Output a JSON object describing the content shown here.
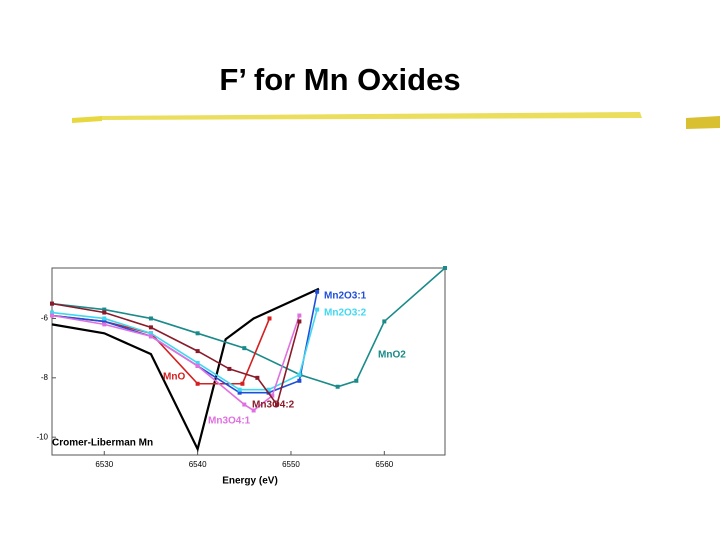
{
  "chart_data": {
    "type": "line",
    "title": "F’ for Mn Oxides",
    "xlabel": "Energy (eV)",
    "xlim": [
      6524.4,
      6566.5
    ],
    "xticks": [
      6530,
      6540,
      6550,
      6560
    ],
    "ylim": [
      -10.6,
      -4.3
    ],
    "yticks": [
      -6,
      -8,
      -10
    ],
    "series": [
      {
        "name": "Cromer-Liberman Mn",
        "color": "#000000",
        "x": [
          6524.4,
          6530,
          6535,
          6540,
          6543,
          6546,
          6553
        ],
        "values": [
          -6.2,
          -6.5,
          -7.2,
          -10.4,
          -6.7,
          -6.0,
          -5.0
        ]
      },
      {
        "name": "MnO2",
        "color": "#1a8a8a",
        "x": [
          6524.4,
          6530,
          6535,
          6540,
          6545,
          6551,
          6555,
          6557,
          6560,
          6566.5
        ],
        "values": [
          -5.5,
          -5.7,
          -6.0,
          -6.5,
          -7.0,
          -7.9,
          -8.3,
          -8.1,
          -6.1,
          -4.3
        ]
      },
      {
        "name": "MnO",
        "color": "#d42020",
        "x": [
          6524.4,
          6530,
          6535,
          6540,
          6544.8,
          6547.7
        ],
        "values": [
          -5.9,
          -6.1,
          -6.5,
          -8.2,
          -8.2,
          -6.0
        ]
      },
      {
        "name": "Mn2O3:1",
        "color": "#1f4fd8",
        "x": [
          6524.4,
          6530,
          6535,
          6540,
          6544.5,
          6547.6,
          6550.9,
          6552.8
        ],
        "values": [
          -5.9,
          -6.1,
          -6.6,
          -7.6,
          -8.5,
          -8.5,
          -8.1,
          -5.1
        ]
      },
      {
        "name": "Mn2O3:2",
        "color": "#40d8f0",
        "x": [
          6524.4,
          6530,
          6535,
          6540,
          6544.5,
          6547.6,
          6550.9,
          6552.8
        ],
        "values": [
          -5.8,
          -6.0,
          -6.5,
          -7.5,
          -8.4,
          -8.4,
          -7.9,
          -5.7
        ]
      },
      {
        "name": "Mn3O4:1",
        "color": "#e070e0",
        "x": [
          6524.4,
          6530,
          6535,
          6540,
          6545,
          6546,
          6548,
          6550.9
        ],
        "values": [
          -5.9,
          -6.2,
          -6.6,
          -7.6,
          -8.9,
          -9.1,
          -8.6,
          -5.9
        ]
      },
      {
        "name": "Mn3O4:2",
        "color": "#8a1a2a",
        "x": [
          6524.4,
          6530,
          6535,
          6540,
          6543.4,
          6546.4,
          6548.5,
          6550.9
        ],
        "values": [
          -5.5,
          -5.8,
          -6.3,
          -7.1,
          -7.7,
          -8.0,
          -8.9,
          -6.1
        ]
      }
    ]
  }
}
